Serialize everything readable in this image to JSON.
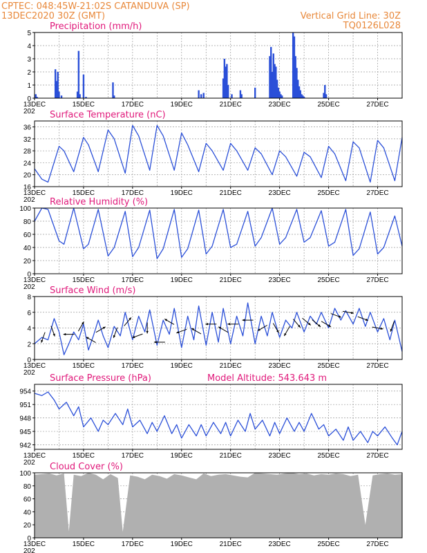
{
  "header": {
    "line1_left": "CPTEC:   048:45W-21:02S   CATANDUVA (SP)",
    "line2_left": "13DEC2020 30Z (GMT)",
    "line1_right": "Vertical Grid Line: 30Z",
    "line2_right": "TQ0126L028"
  },
  "colors": {
    "header": "#e8883a",
    "panel_title": "#e0187a",
    "series_line": "#2a4fd8",
    "cloud_fill": "#b0b0b0"
  },
  "x_axis": {
    "start_day": 13,
    "end_day": 28,
    "tick_labels": [
      "13DEC",
      "15DEC",
      "17DEC",
      "19DEC",
      "21DEC",
      "23DEC",
      "25DEC",
      "27DEC"
    ],
    "tick_days": [
      13,
      15,
      17,
      19,
      21,
      23,
      25,
      27
    ],
    "year_stub": "202"
  },
  "chart_data": [
    {
      "id": "precip",
      "type": "bar",
      "title": "Precipitation (mm/h)",
      "ylim": [
        0,
        5
      ],
      "yticks": [
        0,
        1,
        2,
        3,
        4,
        5
      ],
      "grid": true,
      "series": [
        {
          "x": [
            13.05,
            13.1,
            13.85,
            13.9,
            13.95,
            14.0,
            14.1,
            14.75,
            14.8,
            14.85,
            15.0,
            15.1,
            16.2,
            16.25,
            19.7,
            19.8,
            19.9,
            20.7,
            20.75,
            20.8,
            20.85,
            20.9,
            21.05,
            21.4,
            21.45,
            22.0,
            22.6,
            22.65,
            22.7,
            22.75,
            22.8,
            22.85,
            22.9,
            22.95,
            23.0,
            23.05,
            23.1,
            23.55,
            23.6,
            23.65,
            23.7,
            23.75,
            23.8,
            23.85,
            23.9,
            23.95,
            24.0,
            24.8,
            24.85,
            24.9
          ],
          "values": [
            0.3,
            0.1,
            2.2,
            1.3,
            2.0,
            0.5,
            0.2,
            0.5,
            3.6,
            0.3,
            1.8,
            0.1,
            1.2,
            0.2,
            0.6,
            0.3,
            0.4,
            1.5,
            3.0,
            2.4,
            2.6,
            1.0,
            0.3,
            0.6,
            0.3,
            0.8,
            3.2,
            3.9,
            2.0,
            3.4,
            2.6,
            2.4,
            1.4,
            0.8,
            0.5,
            0.3,
            0.2,
            5.0,
            4.7,
            3.2,
            2.3,
            1.4,
            0.9,
            0.6,
            0.3,
            0.2,
            0.1,
            0.4,
            1.0,
            0.3
          ]
        }
      ]
    },
    {
      "id": "temp",
      "type": "line",
      "title": "Surface Temperature (nC)",
      "ylim": [
        16,
        38
      ],
      "yticks": [
        16,
        20,
        24,
        28,
        32,
        36
      ],
      "grid": true,
      "series": [
        {
          "x": [
            13.0,
            13.3,
            13.55,
            14.0,
            14.2,
            14.6,
            15.0,
            15.2,
            15.6,
            16.0,
            16.25,
            16.7,
            17.0,
            17.25,
            17.7,
            18.0,
            18.25,
            18.7,
            19.0,
            19.25,
            19.7,
            20.0,
            20.25,
            20.7,
            21.0,
            21.25,
            21.7,
            22.0,
            22.25,
            22.7,
            23.0,
            23.25,
            23.7,
            24.0,
            24.25,
            24.7,
            25.0,
            25.25,
            25.7,
            26.0,
            26.25,
            26.7,
            27.0,
            27.25,
            27.7,
            28.0
          ],
          "values": [
            22,
            18.5,
            17.5,
            29.5,
            28,
            21,
            32.5,
            30,
            21,
            35,
            32,
            20.5,
            36.5,
            33,
            21.5,
            36.5,
            33,
            21.5,
            34,
            30,
            21,
            30.5,
            28,
            21.5,
            30.5,
            28,
            21.5,
            29,
            27,
            20,
            28,
            26,
            19.5,
            27.5,
            26,
            19,
            29.5,
            27,
            18,
            31,
            29,
            17.5,
            31.5,
            29,
            18,
            32.5
          ]
        }
      ]
    },
    {
      "id": "rh",
      "type": "line",
      "title": "Relative Humidity (%)",
      "ylim": [
        0,
        100
      ],
      "yticks": [
        0,
        20,
        40,
        60,
        80,
        100
      ],
      "grid": true,
      "series": [
        {
          "x": [
            13.0,
            13.3,
            13.55,
            14.0,
            14.2,
            14.6,
            15.0,
            15.2,
            15.6,
            16.0,
            16.25,
            16.7,
            17.0,
            17.25,
            17.7,
            18.0,
            18.25,
            18.7,
            19.0,
            19.25,
            19.7,
            20.0,
            20.25,
            20.7,
            21.0,
            21.25,
            21.7,
            22.0,
            22.25,
            22.7,
            23.0,
            23.25,
            23.7,
            24.0,
            24.25,
            24.7,
            25.0,
            25.25,
            25.7,
            26.0,
            26.25,
            26.7,
            27.0,
            27.25,
            27.7,
            28.0
          ],
          "values": [
            80,
            100,
            98,
            50,
            45,
            100,
            38,
            45,
            98,
            27,
            40,
            95,
            26,
            40,
            97,
            23,
            38,
            98,
            25,
            38,
            97,
            30,
            42,
            98,
            40,
            45,
            95,
            42,
            55,
            100,
            45,
            55,
            98,
            48,
            55,
            96,
            42,
            48,
            98,
            28,
            38,
            94,
            30,
            40,
            88,
            42
          ]
        }
      ]
    },
    {
      "id": "wind",
      "type": "line",
      "title": "Surface Wind (m/s)",
      "ylim": [
        0,
        8
      ],
      "yticks": [
        0,
        2,
        4,
        6,
        8
      ],
      "grid": true,
      "series": [
        {
          "x": [
            13.0,
            13.3,
            13.55,
            13.8,
            14.0,
            14.2,
            14.4,
            14.6,
            14.8,
            15.0,
            15.2,
            15.4,
            15.6,
            15.8,
            16.0,
            16.25,
            16.5,
            16.7,
            17.0,
            17.25,
            17.5,
            17.7,
            18.0,
            18.25,
            18.5,
            18.7,
            19.0,
            19.25,
            19.5,
            19.7,
            20.0,
            20.25,
            20.5,
            20.7,
            21.0,
            21.25,
            21.5,
            21.7,
            22.0,
            22.25,
            22.5,
            22.7,
            23.0,
            23.25,
            23.5,
            23.7,
            24.0,
            24.25,
            24.5,
            24.7,
            25.0,
            25.25,
            25.5,
            25.7,
            26.0,
            26.25,
            26.5,
            26.7,
            27.0,
            27.25,
            27.5,
            27.7,
            28.0
          ],
          "values": [
            2.0,
            2.8,
            2.5,
            5.2,
            3.5,
            0.6,
            2.0,
            3.5,
            2.5,
            4.5,
            1.2,
            3.0,
            5.0,
            3.0,
            1.5,
            4.2,
            3.0,
            6.0,
            2.5,
            5.5,
            3.5,
            6.3,
            1.8,
            5.0,
            3.2,
            6.5,
            1.5,
            5.5,
            2.5,
            6.8,
            1.8,
            6.0,
            2.2,
            6.5,
            2.0,
            5.5,
            3.0,
            7.2,
            2.0,
            5.5,
            3.0,
            6.0,
            2.8,
            5.0,
            4.0,
            6.0,
            3.5,
            5.5,
            4.5,
            6.0,
            4.0,
            6.5,
            5.0,
            6.2,
            4.5,
            6.5,
            4.2,
            6.0,
            3.5,
            5.2,
            2.5,
            5.0,
            1.0
          ]
        }
      ],
      "wind_arrows": [
        {
          "x": 13.35,
          "speed": 2.8,
          "dir_deg": 200
        },
        {
          "x": 13.75,
          "speed": 3.6,
          "dir_deg": 160
        },
        {
          "x": 14.4,
          "speed": 3.2,
          "dir_deg": 270
        },
        {
          "x": 14.9,
          "speed": 4.2,
          "dir_deg": 30
        },
        {
          "x": 15.3,
          "speed": 2.5,
          "dir_deg": 300
        },
        {
          "x": 15.7,
          "speed": 3.8,
          "dir_deg": 60
        },
        {
          "x": 16.3,
          "speed": 3.4,
          "dir_deg": 200
        },
        {
          "x": 16.8,
          "speed": 4.8,
          "dir_deg": 40
        },
        {
          "x": 17.2,
          "speed": 3.0,
          "dir_deg": 250
        },
        {
          "x": 17.6,
          "speed": 4.0,
          "dir_deg": 180
        },
        {
          "x": 18.1,
          "speed": 2.2,
          "dir_deg": 270
        },
        {
          "x": 18.5,
          "speed": 4.8,
          "dir_deg": 300
        },
        {
          "x": 19.0,
          "speed": 3.6,
          "dir_deg": 250
        },
        {
          "x": 19.6,
          "speed": 3.6,
          "dir_deg": 300
        },
        {
          "x": 20.2,
          "speed": 4.5,
          "dir_deg": 270
        },
        {
          "x": 20.7,
          "speed": 3.8,
          "dir_deg": 300
        },
        {
          "x": 21.1,
          "speed": 4.5,
          "dir_deg": 270
        },
        {
          "x": 21.7,
          "speed": 5.0,
          "dir_deg": 270
        },
        {
          "x": 22.3,
          "speed": 4.0,
          "dir_deg": 240
        },
        {
          "x": 22.85,
          "speed": 4.0,
          "dir_deg": 150
        },
        {
          "x": 23.3,
          "speed": 3.6,
          "dir_deg": 210
        },
        {
          "x": 23.7,
          "speed": 4.6,
          "dir_deg": 140
        },
        {
          "x": 24.1,
          "speed": 4.8,
          "dir_deg": 130
        },
        {
          "x": 24.5,
          "speed": 4.6,
          "dir_deg": 130
        },
        {
          "x": 24.9,
          "speed": 4.5,
          "dir_deg": 120
        },
        {
          "x": 25.3,
          "speed": 5.6,
          "dir_deg": 110
        },
        {
          "x": 25.8,
          "speed": 6.0,
          "dir_deg": 100
        },
        {
          "x": 26.4,
          "speed": 5.2,
          "dir_deg": 110
        },
        {
          "x": 27.0,
          "speed": 4.0,
          "dir_deg": 100
        },
        {
          "x": 27.6,
          "speed": 4.2,
          "dir_deg": 200
        }
      ]
    },
    {
      "id": "press",
      "type": "line",
      "title": "Surface Pressure (hPa)",
      "annotation": "Model Altitude: 543.643 m",
      "ylim": [
        941,
        955.5
      ],
      "yticks": [
        942,
        945,
        948,
        951,
        954
      ],
      "grid": true,
      "series": [
        {
          "x": [
            13.0,
            13.3,
            13.55,
            13.8,
            14.0,
            14.3,
            14.6,
            14.8,
            15.0,
            15.3,
            15.6,
            15.8,
            16.0,
            16.3,
            16.6,
            16.8,
            17.0,
            17.3,
            17.6,
            17.8,
            18.0,
            18.3,
            18.6,
            18.8,
            19.0,
            19.3,
            19.6,
            19.8,
            20.0,
            20.3,
            20.6,
            20.8,
            21.0,
            21.3,
            21.6,
            21.8,
            22.0,
            22.3,
            22.6,
            22.8,
            23.0,
            23.3,
            23.6,
            23.8,
            24.0,
            24.3,
            24.6,
            24.8,
            25.0,
            25.3,
            25.6,
            25.8,
            26.0,
            26.3,
            26.6,
            26.8,
            27.0,
            27.3,
            27.6,
            27.8,
            28.0
          ],
          "values": [
            953.5,
            953,
            953.8,
            952,
            950,
            951.5,
            948.5,
            950.5,
            946,
            948,
            945,
            947.5,
            946.5,
            949,
            946.5,
            950,
            946,
            947.5,
            944.5,
            947,
            945,
            948.5,
            944.5,
            946.5,
            943.5,
            946.5,
            944,
            946.5,
            944,
            947,
            944.5,
            947,
            944,
            947.5,
            945,
            949,
            945.5,
            947.5,
            944,
            947,
            944.5,
            948,
            945,
            947,
            945,
            949,
            945.5,
            946.5,
            944,
            945.5,
            943,
            946,
            943,
            945,
            942.5,
            945,
            944,
            946,
            943.5,
            942,
            945
          ]
        }
      ]
    },
    {
      "id": "cloud",
      "type": "area",
      "title": "Cloud Cover (%)",
      "ylim": [
        0,
        100
      ],
      "yticks": [
        0,
        20,
        40,
        60,
        80,
        100
      ],
      "grid": true,
      "series": [
        {
          "x": [
            13.0,
            13.3,
            13.6,
            13.9,
            14.2,
            14.4,
            14.6,
            14.9,
            15.2,
            15.5,
            15.8,
            16.1,
            16.4,
            16.6,
            16.9,
            17.2,
            17.5,
            17.8,
            18.1,
            18.4,
            18.7,
            19.0,
            19.3,
            19.6,
            19.9,
            20.2,
            20.5,
            20.8,
            21.1,
            21.4,
            21.7,
            22.0,
            22.3,
            22.6,
            22.9,
            23.2,
            23.5,
            23.8,
            24.1,
            24.4,
            24.7,
            25.0,
            25.3,
            25.6,
            25.9,
            26.2,
            26.5,
            26.8,
            27.1,
            27.4,
            27.7,
            28.0
          ],
          "values": [
            97,
            98,
            99,
            96,
            99,
            10,
            97,
            95,
            100,
            97,
            90,
            98,
            92,
            9,
            96,
            94,
            90,
            97,
            95,
            91,
            98,
            96,
            93,
            90,
            99,
            95,
            97,
            98,
            96,
            94,
            93,
            100,
            99,
            98,
            97,
            99,
            100,
            98,
            99,
            96,
            98,
            97,
            99,
            98,
            95,
            97,
            20,
            96,
            98,
            99,
            97,
            98
          ]
        }
      ]
    }
  ]
}
